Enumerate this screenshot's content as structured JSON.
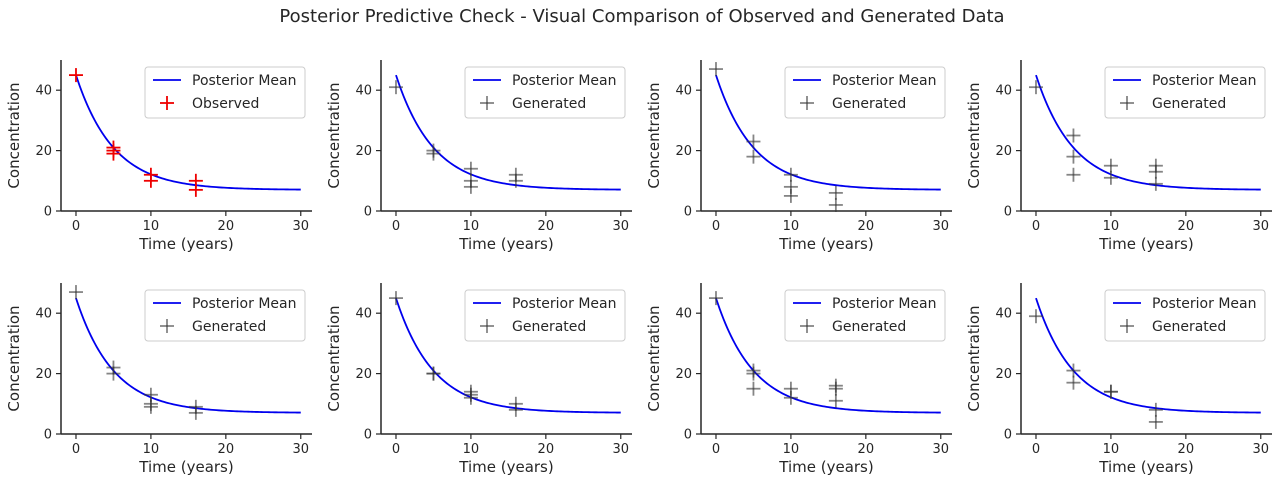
{
  "figure": {
    "title": "Posterior Predictive Check - Visual Comparison of Observed and Generated Data"
  },
  "colors": {
    "mean_line": "#0000ee",
    "observed": "#ee0000",
    "generated": "#333333"
  },
  "chart_data": [
    {
      "type": "scatter",
      "xlabel": "Time (years)",
      "ylabel": "Concentration",
      "xlim": [
        -2,
        31.5
      ],
      "ylim": [
        0,
        50
      ],
      "xticks": [
        0,
        10,
        20,
        30
      ],
      "yticks": [
        0,
        20,
        40
      ],
      "legend": {
        "position": "top-right",
        "entries": [
          "Posterior Mean",
          "Observed"
        ]
      },
      "mean_curve": {
        "name": "Posterior Mean",
        "form": "exponential decay to plateau",
        "y0": 45,
        "plateau": 7,
        "rate": 0.2,
        "x_range": [
          0,
          30
        ]
      },
      "series": [
        {
          "name": "Observed",
          "marker": "+",
          "points": [
            [
              0,
              45
            ],
            [
              5,
              19
            ],
            [
              5,
              20
            ],
            [
              5,
              21
            ],
            [
              10,
              10
            ],
            [
              10,
              12
            ],
            [
              16,
              7
            ],
            [
              16,
              10
            ]
          ]
        }
      ]
    },
    {
      "type": "scatter",
      "xlabel": "Time (years)",
      "ylabel": "Concentration",
      "xlim": [
        -2,
        31.5
      ],
      "ylim": [
        0,
        50
      ],
      "xticks": [
        0,
        10,
        20,
        30
      ],
      "yticks": [
        0,
        20,
        40
      ],
      "legend": {
        "position": "top-right",
        "entries": [
          "Posterior Mean",
          "Generated"
        ]
      },
      "mean_curve": {
        "name": "Posterior Mean",
        "form": "exponential decay to plateau",
        "y0": 45,
        "plateau": 7,
        "rate": 0.2,
        "x_range": [
          0,
          30
        ]
      },
      "series": [
        {
          "name": "Generated",
          "marker": "+",
          "points": [
            [
              0,
              41
            ],
            [
              5,
              19
            ],
            [
              5,
              20
            ],
            [
              10,
              8
            ],
            [
              10,
              10
            ],
            [
              10,
              14
            ],
            [
              16,
              10
            ],
            [
              16,
              12
            ]
          ]
        }
      ]
    },
    {
      "type": "scatter",
      "xlabel": "Time (years)",
      "ylabel": "Concentration",
      "xlim": [
        -2,
        31.5
      ],
      "ylim": [
        0,
        50
      ],
      "xticks": [
        0,
        10,
        20,
        30
      ],
      "yticks": [
        0,
        20,
        40
      ],
      "legend": {
        "position": "top-right",
        "entries": [
          "Posterior Mean",
          "Generated"
        ]
      },
      "mean_curve": {
        "name": "Posterior Mean",
        "form": "exponential decay to plateau",
        "y0": 45,
        "plateau": 7,
        "rate": 0.2,
        "x_range": [
          0,
          30
        ]
      },
      "series": [
        {
          "name": "Generated",
          "marker": "+",
          "points": [
            [
              0,
              47
            ],
            [
              5,
              18
            ],
            [
              5,
              23
            ],
            [
              10,
              5
            ],
            [
              10,
              8
            ],
            [
              10,
              12
            ],
            [
              16,
              2
            ],
            [
              16,
              6
            ]
          ]
        }
      ]
    },
    {
      "type": "scatter",
      "xlabel": "Time (years)",
      "ylabel": "Concentration",
      "xlim": [
        -2,
        31.5
      ],
      "ylim": [
        0,
        50
      ],
      "xticks": [
        0,
        10,
        20,
        30
      ],
      "yticks": [
        0,
        20,
        40
      ],
      "legend": {
        "position": "top-right",
        "entries": [
          "Posterior Mean",
          "Generated"
        ]
      },
      "mean_curve": {
        "name": "Posterior Mean",
        "form": "exponential decay to plateau",
        "y0": 45,
        "plateau": 7,
        "rate": 0.2,
        "x_range": [
          0,
          30
        ]
      },
      "series": [
        {
          "name": "Generated",
          "marker": "+",
          "points": [
            [
              0,
              41
            ],
            [
              5,
              12
            ],
            [
              5,
              18
            ],
            [
              5,
              25
            ],
            [
              10,
              11
            ],
            [
              10,
              15
            ],
            [
              16,
              9
            ],
            [
              16,
              13
            ],
            [
              16,
              15
            ]
          ]
        }
      ]
    },
    {
      "type": "scatter",
      "xlabel": "Time (years)",
      "ylabel": "Concentration",
      "xlim": [
        -2,
        31.5
      ],
      "ylim": [
        0,
        50
      ],
      "xticks": [
        0,
        10,
        20,
        30
      ],
      "yticks": [
        0,
        20,
        40
      ],
      "legend": {
        "position": "top-right",
        "entries": [
          "Posterior Mean",
          "Generated"
        ]
      },
      "mean_curve": {
        "name": "Posterior Mean",
        "form": "exponential decay to plateau",
        "y0": 45,
        "plateau": 7,
        "rate": 0.2,
        "x_range": [
          0,
          30
        ]
      },
      "series": [
        {
          "name": "Generated",
          "marker": "+",
          "points": [
            [
              0,
              47
            ],
            [
              5,
              20
            ],
            [
              5,
              22
            ],
            [
              10,
              9
            ],
            [
              10,
              10
            ],
            [
              10,
              13
            ],
            [
              16,
              7
            ],
            [
              16,
              9
            ]
          ]
        }
      ]
    },
    {
      "type": "scatter",
      "xlabel": "Time (years)",
      "ylabel": "Concentration",
      "xlim": [
        -2,
        31.5
      ],
      "ylim": [
        0,
        50
      ],
      "xticks": [
        0,
        10,
        20,
        30
      ],
      "yticks": [
        0,
        20,
        40
      ],
      "legend": {
        "position": "top-right",
        "entries": [
          "Posterior Mean",
          "Generated"
        ]
      },
      "mean_curve": {
        "name": "Posterior Mean",
        "form": "exponential decay to plateau",
        "y0": 45,
        "plateau": 7,
        "rate": 0.2,
        "x_range": [
          0,
          30
        ]
      },
      "series": [
        {
          "name": "Generated",
          "marker": "+",
          "points": [
            [
              0,
              45
            ],
            [
              5,
              20
            ],
            [
              5,
              20
            ],
            [
              10,
              12
            ],
            [
              10,
              13
            ],
            [
              10,
              14
            ],
            [
              16,
              8
            ],
            [
              16,
              10
            ]
          ]
        }
      ]
    },
    {
      "type": "scatter",
      "xlabel": "Time (years)",
      "ylabel": "Concentration",
      "xlim": [
        -2,
        31.5
      ],
      "ylim": [
        0,
        50
      ],
      "xticks": [
        0,
        10,
        20,
        30
      ],
      "yticks": [
        0,
        20,
        40
      ],
      "legend": {
        "position": "top-right",
        "entries": [
          "Posterior Mean",
          "Generated"
        ]
      },
      "mean_curve": {
        "name": "Posterior Mean",
        "form": "exponential decay to plateau",
        "y0": 45,
        "plateau": 7,
        "rate": 0.2,
        "x_range": [
          0,
          30
        ]
      },
      "series": [
        {
          "name": "Generated",
          "marker": "+",
          "points": [
            [
              0,
              45
            ],
            [
              5,
              15
            ],
            [
              5,
              20
            ],
            [
              5,
              21
            ],
            [
              10,
              12
            ],
            [
              10,
              15
            ],
            [
              16,
              11
            ],
            [
              16,
              15
            ],
            [
              16,
              16
            ]
          ]
        }
      ]
    },
    {
      "type": "scatter",
      "xlabel": "Time (years)",
      "ylabel": "Concentration",
      "xlim": [
        -2,
        31.5
      ],
      "ylim": [
        0,
        50
      ],
      "xticks": [
        0,
        10,
        20,
        30
      ],
      "yticks": [
        0,
        20,
        40
      ],
      "legend": {
        "position": "top-right",
        "entries": [
          "Posterior Mean",
          "Generated"
        ]
      },
      "mean_curve": {
        "name": "Posterior Mean",
        "form": "exponential decay to plateau",
        "y0": 45,
        "plateau": 7,
        "rate": 0.2,
        "x_range": [
          0,
          30
        ]
      },
      "series": [
        {
          "name": "Generated",
          "marker": "+",
          "points": [
            [
              0,
              39
            ],
            [
              5,
              17
            ],
            [
              5,
              21
            ],
            [
              10,
              14
            ],
            [
              10,
              14
            ],
            [
              16,
              4
            ],
            [
              16,
              8
            ]
          ]
        }
      ]
    }
  ]
}
